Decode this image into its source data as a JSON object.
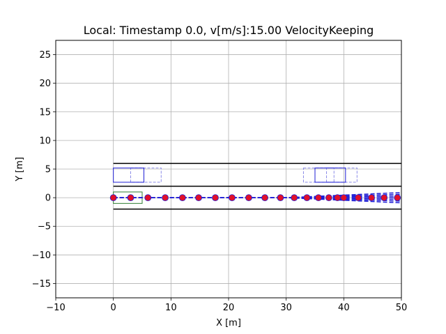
{
  "chart_data": {
    "type": "scatter",
    "title": "Local: Timestamp  0.0, v[m/s]:15.00 VelocityKeeping",
    "xlabel": "X [m]",
    "ylabel": "Y [m]",
    "xlim": [
      -10,
      50
    ],
    "ylim": [
      -17.5,
      27.5
    ],
    "xticks": [
      -10,
      0,
      10,
      20,
      30,
      40,
      50
    ],
    "yticks": [
      -15,
      -10,
      -5,
      0,
      5,
      10,
      15,
      20,
      25
    ],
    "xtick_labels": [
      "−10",
      "0",
      "10",
      "20",
      "30",
      "40",
      "50"
    ],
    "ytick_labels": [
      "−15",
      "−10",
      "−5",
      "0",
      "5",
      "10",
      "15",
      "20",
      "25"
    ],
    "grid": true,
    "colors": {
      "lane": "#000000",
      "ego": "#2e7d32",
      "obstacle": "#1f1fd6",
      "obstacle_pred": "#8a8ae8",
      "trajectory": "#1f1fd6",
      "waypoint": "#e0102a",
      "grid": "#b0b0b0"
    },
    "lane_lines": [
      {
        "x": [
          0,
          50
        ],
        "y": [
          6,
          6
        ]
      },
      {
        "x": [
          0,
          50
        ],
        "y": [
          2,
          2
        ]
      },
      {
        "x": [
          0,
          50
        ],
        "y": [
          -2,
          -2
        ]
      }
    ],
    "ego_vehicle": {
      "x": 0,
      "y": -1,
      "width": 5,
      "height": 2
    },
    "obstacles": [
      {
        "x": 0,
        "y": 2.7,
        "width": 5.3,
        "height": 2.5
      },
      {
        "x": 35,
        "y": 2.7,
        "width": 5.3,
        "height": 2.5
      }
    ],
    "obstacle_predictions": [
      {
        "x": 3,
        "y": 2.7,
        "width": 5.3,
        "height": 2.5
      },
      {
        "x": 33,
        "y": 2.7,
        "width": 5.3,
        "height": 2.5
      },
      {
        "x": 37,
        "y": 2.7,
        "width": 5.3,
        "height": 2.5
      }
    ],
    "trajectories": [
      {
        "x": [
          0,
          30,
          50
        ],
        "y": [
          0,
          0,
          0.9
        ]
      },
      {
        "x": [
          0,
          30,
          50
        ],
        "y": [
          0,
          0,
          0.6
        ]
      },
      {
        "x": [
          0,
          30,
          50
        ],
        "y": [
          0,
          0,
          0.3
        ]
      },
      {
        "x": [
          0,
          30,
          50
        ],
        "y": [
          0,
          0,
          0
        ]
      },
      {
        "x": [
          0,
          30,
          50
        ],
        "y": [
          0,
          0,
          -0.3
        ]
      },
      {
        "x": [
          0,
          30,
          50
        ],
        "y": [
          0,
          0,
          -0.6
        ]
      },
      {
        "x": [
          0,
          30,
          50
        ],
        "y": [
          0,
          0,
          -0.9
        ]
      }
    ],
    "waypoints": {
      "x": [
        0,
        3,
        6,
        9,
        12,
        14.8,
        17.7,
        20.6,
        23.5,
        26.3,
        29,
        31.4,
        33.6,
        35.6,
        37.4,
        38.9,
        40,
        42.5,
        44.8,
        47,
        49.3
      ],
      "y": [
        0,
        0,
        0,
        0,
        0,
        0,
        0,
        0,
        0,
        0,
        0,
        0,
        0,
        0,
        0,
        0,
        0,
        0,
        0,
        0,
        0
      ]
    }
  }
}
